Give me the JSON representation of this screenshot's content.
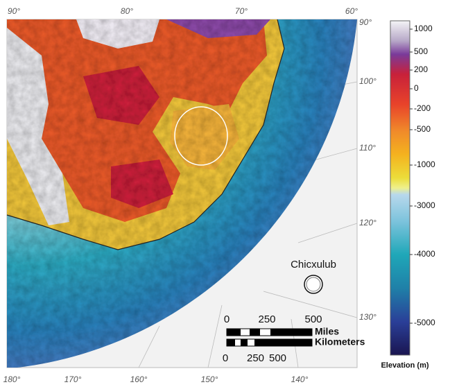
{
  "map": {
    "top_labels": [
      "90°",
      "80°",
      "70°",
      "60°"
    ],
    "right_labels": [
      "90°",
      "100°",
      "110°",
      "120°",
      "130°"
    ],
    "bottom_labels": [
      "180°",
      "170°",
      "160°",
      "150°",
      "140°"
    ],
    "site_label": "Chicxulub",
    "scale": {
      "miles_ticks": [
        0,
        250,
        500
      ],
      "miles_unit": "Miles",
      "km_ticks": [
        0,
        250,
        500
      ],
      "km_unit": "Kilometers"
    },
    "colorbar": {
      "labels": [
        1000,
        500,
        200,
        0,
        -200,
        -500,
        -1000,
        -3000,
        -4000,
        -5000
      ],
      "title": "Elevation (m)"
    }
  }
}
